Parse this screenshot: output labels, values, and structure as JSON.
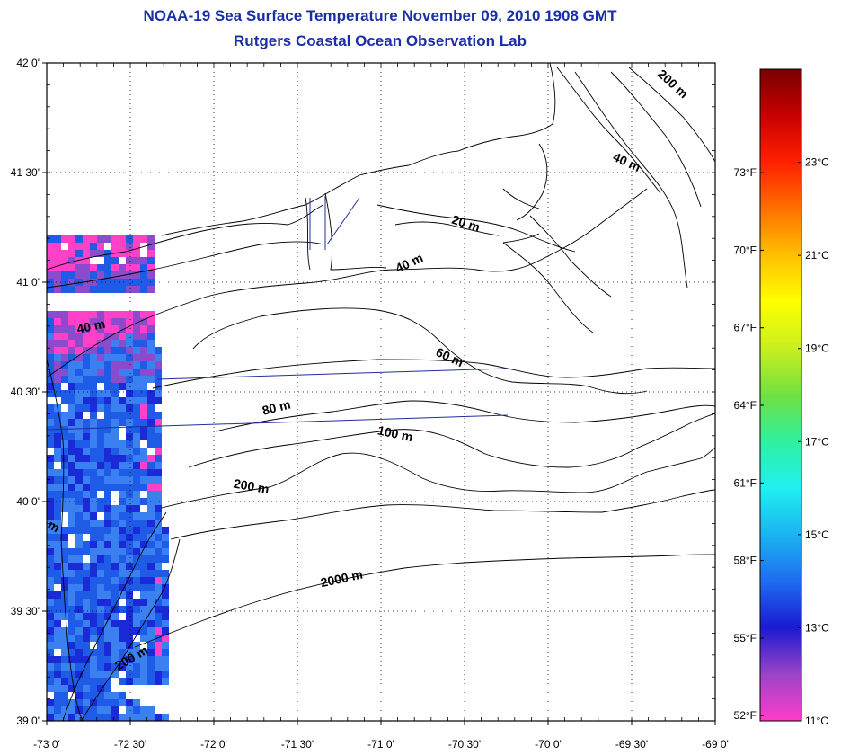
{
  "title": "NOAA-19 Sea Surface Temperature November 09, 2010 1908 GMT",
  "subtitle": "Rutgers Coastal Ocean Observation Lab",
  "lat_ticks": [
    {
      "deg": 42.0,
      "label": "42 0'"
    },
    {
      "deg": 41.5,
      "label": "41 30'"
    },
    {
      "deg": 41.0,
      "label": "41 0'"
    },
    {
      "deg": 40.5,
      "label": "40 30'"
    },
    {
      "deg": 40.0,
      "label": "40 0'"
    },
    {
      "deg": 39.5,
      "label": "39 30'"
    },
    {
      "deg": 39.0,
      "label": "39 0'"
    }
  ],
  "lon_ticks": [
    {
      "deg": -73.0,
      "label": "-73 0'"
    },
    {
      "deg": -72.5,
      "label": "-72 30'"
    },
    {
      "deg": -72.0,
      "label": "-72 0'"
    },
    {
      "deg": -71.5,
      "label": "-71 30'"
    },
    {
      "deg": -71.0,
      "label": "-71 0'"
    },
    {
      "deg": -70.5,
      "label": "-70 30'"
    },
    {
      "deg": -70.0,
      "label": "-70 0'"
    },
    {
      "deg": -69.5,
      "label": "-69 30'"
    },
    {
      "deg": -69.0,
      "label": "-69 0'"
    }
  ],
  "depth_labels": [
    {
      "text": "200 m",
      "lon": -69.27,
      "lat": 41.89,
      "rot": 42
    },
    {
      "text": "40 m",
      "lon": -69.54,
      "lat": 41.53,
      "rot": 25
    },
    {
      "text": "20 m",
      "lon": -70.5,
      "lat": 41.25,
      "rot": 18
    },
    {
      "text": "40 m",
      "lon": -70.82,
      "lat": 41.07,
      "rot": -25
    },
    {
      "text": "40 m",
      "lon": -72.73,
      "lat": 40.78,
      "rot": -12
    },
    {
      "text": "60 m",
      "lon": -70.6,
      "lat": 40.64,
      "rot": 25
    },
    {
      "text": "80 m",
      "lon": -71.62,
      "lat": 40.41,
      "rot": -14
    },
    {
      "text": "100 m",
      "lon": -70.92,
      "lat": 40.29,
      "rot": 12
    },
    {
      "text": "200 m",
      "lon": -71.78,
      "lat": 40.05,
      "rot": 10
    },
    {
      "text": "2000 m",
      "lon": -71.23,
      "lat": 39.63,
      "rot": -12
    },
    {
      "text": "200 m",
      "lon": -72.48,
      "lat": 39.27,
      "rot": -30
    },
    {
      "text": "m",
      "lon": -72.97,
      "lat": 39.87,
      "rot": 30
    }
  ],
  "colorbar": {
    "celsius": [
      {
        "value": 23,
        "label": "23°C"
      },
      {
        "value": 21,
        "label": "21°C"
      },
      {
        "value": 19,
        "label": "19°C"
      },
      {
        "value": 17,
        "label": "17°C"
      },
      {
        "value": 15,
        "label": "15°C"
      },
      {
        "value": 13,
        "label": "13°C"
      },
      {
        "value": 11,
        "label": "11°C"
      }
    ],
    "fahrenheit": [
      {
        "value": 73,
        "label": "73°F"
      },
      {
        "value": 70,
        "label": "70°F"
      },
      {
        "value": 67,
        "label": "67°F"
      },
      {
        "value": 64,
        "label": "64°F"
      },
      {
        "value": 61,
        "label": "61°F"
      },
      {
        "value": 58,
        "label": "58°F"
      },
      {
        "value": 55,
        "label": "55°F"
      },
      {
        "value": 52,
        "label": "52°F"
      }
    ],
    "stops": [
      "#ff3cc8",
      "#9b44c8",
      "#1a1ad0",
      "#1f6cf0",
      "#1ab4f0",
      "#20f0f0",
      "#30f0a0",
      "#70e040",
      "#c8ef20",
      "#ffff00",
      "#ffc000",
      "#ff7000",
      "#ff2000",
      "#c80000",
      "#780000"
    ]
  },
  "colors": {
    "title": "#1a2fa8",
    "sst_pink": "#ff40c8",
    "sst_purple": "#8a4ccc",
    "sst_blue": "#1e5ce8",
    "sst_lightblue": "#3a80f0",
    "sst_deepblue": "#1a2ad6",
    "track_line": "#1f2f9f"
  }
}
